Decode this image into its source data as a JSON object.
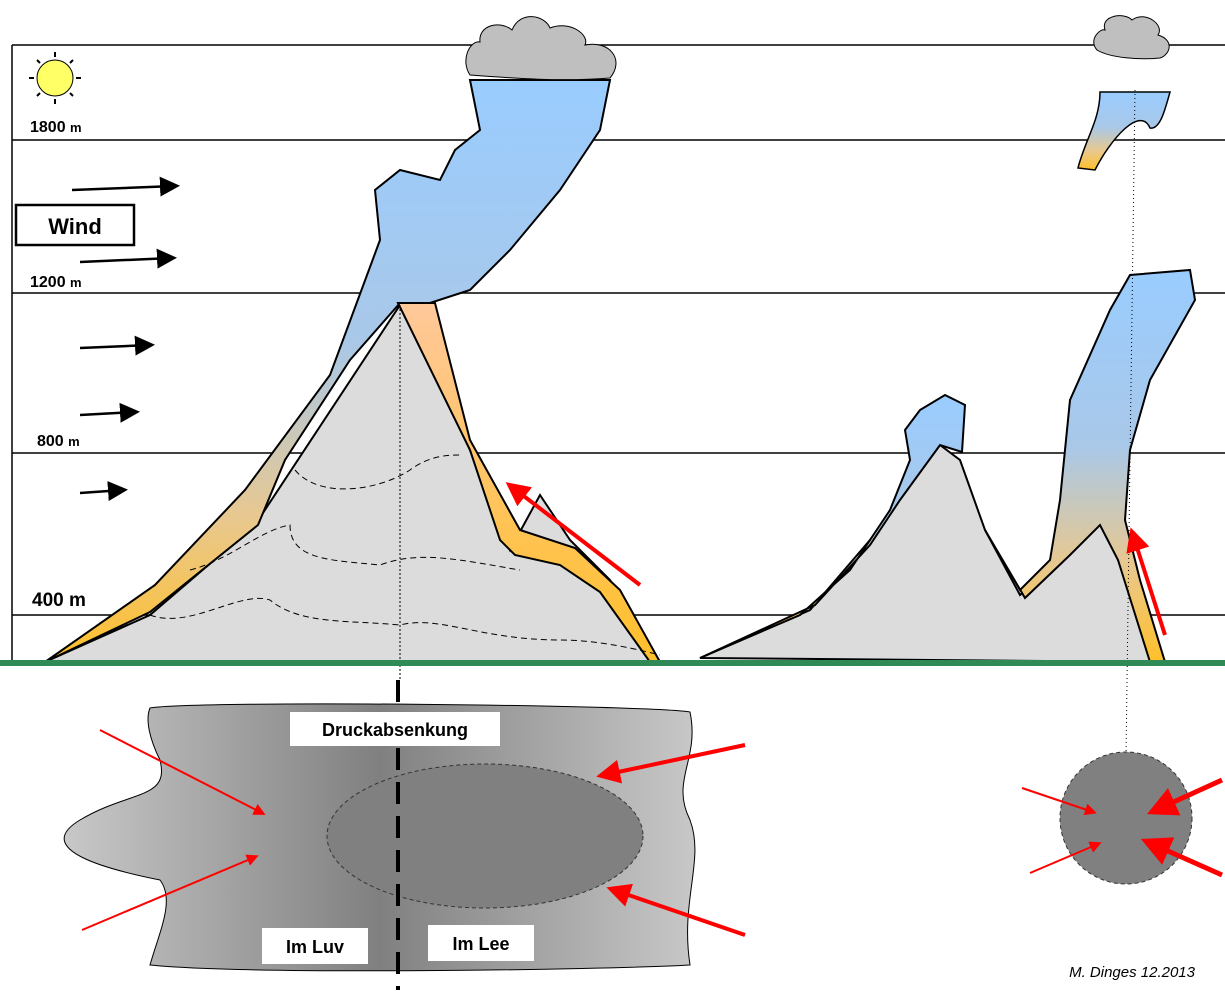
{
  "altitude_labels": [
    {
      "number": "1800",
      "unit": "m"
    },
    {
      "number": "1200",
      "unit": "m"
    },
    {
      "number": "800",
      "unit": "m"
    },
    {
      "number": "400",
      "unit": "m"
    }
  ],
  "wind_label": "Wind",
  "labels": {
    "pressure_drop": "Druckabsenkung",
    "luv": "Im Luv",
    "lee": "Im Lee"
  },
  "credit": "M. Dinges 12.2013"
}
